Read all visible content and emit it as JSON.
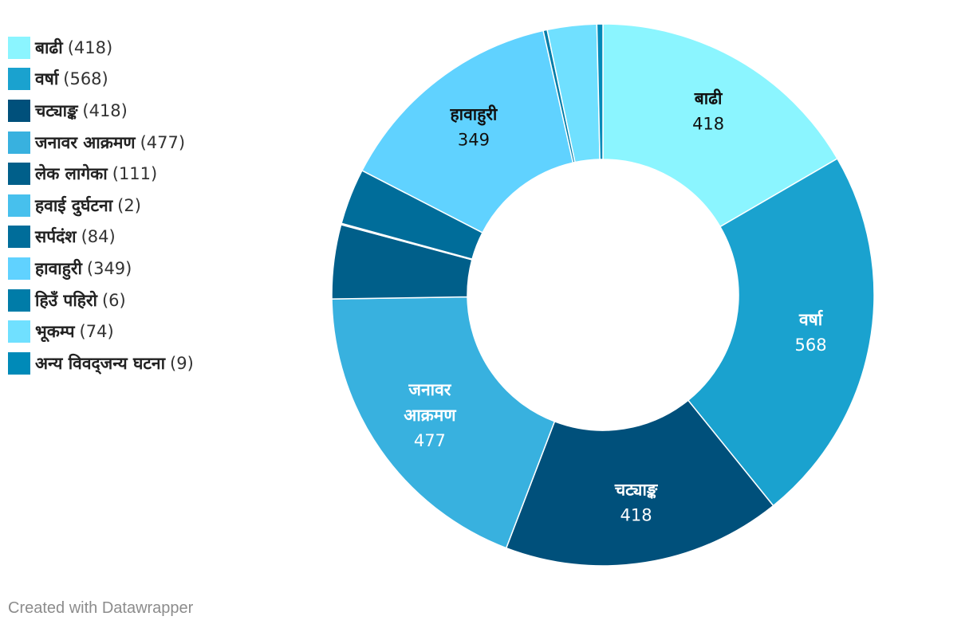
{
  "chart_data": {
    "type": "pie",
    "donut": true,
    "legend_position": "left",
    "slices": [
      {
        "label": "बाढी",
        "value": 418,
        "color": "#8bf5ff",
        "text_color": "#111111"
      },
      {
        "label": "वर्षा",
        "value": 568,
        "color": "#1aa2cf",
        "text_color": "#ffffff"
      },
      {
        "label": "चट्याङ्क",
        "value": 418,
        "color": "#00507b",
        "text_color": "#ffffff"
      },
      {
        "label": "जनावर आक्रमण",
        "label_lines": [
          "जनावर",
          "आक्रमण"
        ],
        "value": 477,
        "color": "#38b1df",
        "text_color": "#ffffff"
      },
      {
        "label": "लेक लागेका",
        "value": 111,
        "color": "#005f8a",
        "text_color": "#ffffff"
      },
      {
        "label": "हवाई दुर्घटना",
        "value": 2,
        "color": "#47c0ed",
        "text_color": "#ffffff"
      },
      {
        "label": "सर्पदंश",
        "value": 84,
        "color": "#006d9a",
        "text_color": "#ffffff"
      },
      {
        "label": "हावाहुरी",
        "value": 349,
        "color": "#60d2ff",
        "text_color": "#111111"
      },
      {
        "label": "हिउँ पहिरो",
        "value": 6,
        "color": "#007ca8",
        "text_color": "#ffffff"
      },
      {
        "label": "भूकम्प",
        "value": 74,
        "color": "#70e0ff",
        "text_color": "#111111"
      },
      {
        "label": "अन्य विवद्जन्य घटना",
        "value": 9,
        "color": "#008ab8",
        "text_color": "#ffffff"
      }
    ],
    "direct_labels": [
      "बाढी",
      "वर्षा",
      "चट्याङ्क",
      "जनावर आक्रमण",
      "हावाहुरी"
    ]
  },
  "footer": "Created with Datawrapper"
}
